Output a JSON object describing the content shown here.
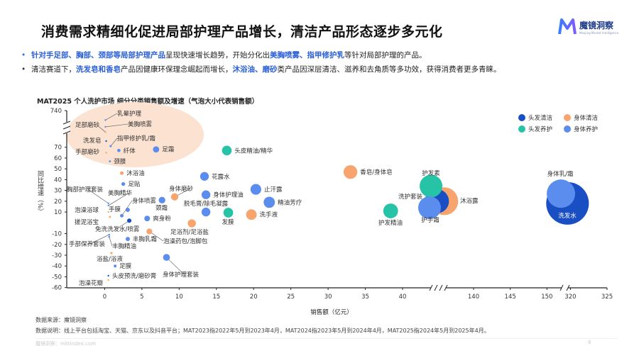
{
  "header": {
    "title": "消费需求精细化促进局部护理产品增长，清洁产品形态逐步多元化",
    "logo_name": "魔镜洞察",
    "logo_sub": "Moojing Market Intelligence"
  },
  "bullets": [
    [
      {
        "t": "针对手足部、胸部、颈部等局部护理产品",
        "h": true
      },
      {
        "t": "呈现快速增长趋势，开始分化出",
        "h": false
      },
      {
        "t": "美胸喷雾、指甲修护乳",
        "h": true
      },
      {
        "t": "等针对局部护理的产品。",
        "h": false
      }
    ],
    [
      {
        "t": "清洁赛道下，",
        "h": false
      },
      {
        "t": "洗发皂和香皂",
        "h": true
      },
      {
        "t": "产品因健康环保理念崛起而增长，",
        "h": false
      },
      {
        "t": "沐浴油、磨砂",
        "h": true
      },
      {
        "t": "类产品因深层清洁、滋养和去角质等多功效，获得消费者更多青睐。",
        "h": false
      }
    ]
  ],
  "chart_data": {
    "type": "scatter",
    "title": "MAT2025 个人洗护市场 细分分类销售额及增速（气泡大小代表销售额）",
    "xlabel": "销售额（亿元）",
    "ylabel": "同比增速（%）",
    "x_ticks": [
      0,
      5,
      10,
      15,
      20,
      25,
      30,
      35,
      40,
      140,
      145,
      150,
      320,
      325
    ],
    "y_ticks": [
      740,
      70,
      60,
      50,
      40,
      30,
      20,
      10,
      -10,
      -20,
      -30,
      -40,
      -50,
      -60
    ],
    "x_axis_breaks": [
      [
        40,
        134
      ],
      [
        152,
        318.5
      ]
    ],
    "y_axis_break": [
      72,
      740
    ],
    "legend_position": "top-right",
    "categories": [
      {
        "name": "头发清洁",
        "color": "#1a4fc4"
      },
      {
        "name": "身体清洁",
        "color": "#f7a46e"
      },
      {
        "name": "头发养护",
        "color": "#27c3a6"
      },
      {
        "name": "身体养护",
        "color": "#5b8def"
      }
    ],
    "points": [
      {
        "name": "乳晕护理",
        "x": 0.1,
        "y": 550,
        "cat": 3
      },
      {
        "name": "足部磨砂",
        "x": 0.1,
        "y": 310,
        "cat": 1
      },
      {
        "name": "美胸喷雾",
        "x": 0.1,
        "y": 414,
        "cat": 3
      },
      {
        "name": "洗发皂",
        "x": 0.2,
        "y": 129,
        "cat": 0
      },
      {
        "name": "指甲修护乳/霜",
        "x": 0.8,
        "y": 71,
        "cat": 3
      },
      {
        "name": "手部磨砂",
        "x": 0.2,
        "y": 65,
        "cat": 1
      },
      {
        "name": "纤体",
        "x": 1.9,
        "y": 67,
        "cat": 3
      },
      {
        "name": "足霜",
        "x": 6.9,
        "y": 68,
        "cat": 3
      },
      {
        "name": "颈膜",
        "x": 0.7,
        "y": 57,
        "cat": 3
      },
      {
        "name": "沐浴油",
        "x": 2.3,
        "y": 46,
        "cat": 1
      },
      {
        "name": "足贴",
        "x": 2.5,
        "y": 36,
        "cat": 3
      },
      {
        "name": "胸部护理套装",
        "x": 0.5,
        "y": 18,
        "cat": 3
      },
      {
        "name": "美胸精华",
        "x": 0.5,
        "y": 16,
        "cat": 3
      },
      {
        "name": "泡澡浴球",
        "x": 0.5,
        "y": 10,
        "cat": 1
      },
      {
        "name": "手膜",
        "x": 3.1,
        "y": 12,
        "cat": 3
      },
      {
        "name": "身体喷雾",
        "x": 2.3,
        "y": 6.6,
        "cat": 3
      },
      {
        "name": "颈霜",
        "x": 7.7,
        "y": 21,
        "cat": 3
      },
      {
        "name": "身体磨砂",
        "x": 9.4,
        "y": 24,
        "cat": 1
      },
      {
        "name": "爽身粉",
        "x": 5.7,
        "y": 4,
        "cat": 3
      },
      {
        "name": "搓泥浴宝",
        "x": 0.7,
        "y": 5.5,
        "cat": 1
      },
      {
        "name": "免洗洗发水/喷雾",
        "x": 3.3,
        "y": 2,
        "cat": 0
      },
      {
        "name": "足浴剂/足浴盐",
        "x": 11.7,
        "y": -0.5,
        "cat": 1
      },
      {
        "name": "泡澡药包/泡脚包",
        "x": 6,
        "y": -8,
        "cat": 1
      },
      {
        "name": "手部保养套装",
        "x": 0.6,
        "y": -11,
        "cat": 3
      },
      {
        "name": "丰胸乳霜",
        "x": 3.1,
        "y": -15,
        "cat": 3
      },
      {
        "name": "丰胸精油",
        "x": 0.6,
        "y": -13,
        "cat": 3
      },
      {
        "name": "浴盐/浴液",
        "x": 0.9,
        "y": -28,
        "cat": 1
      },
      {
        "name": "足膜",
        "x": 1.4,
        "y": -40,
        "cat": 3
      },
      {
        "name": "头皮预洗/磨砂膏",
        "x": 0.5,
        "y": -49,
        "cat": 0
      },
      {
        "name": "泡澡花瓣",
        "x": 0.5,
        "y": -53,
        "cat": 1
      },
      {
        "name": "身体护理套装",
        "x": 8.3,
        "y": -32,
        "cat": 3
      },
      {
        "name": "头皮精油/精华",
        "x": 16.4,
        "y": 67,
        "cat": 2
      },
      {
        "name": "花露水",
        "x": 13.4,
        "y": 43,
        "cat": 3
      },
      {
        "name": "身体护理油",
        "x": 13.6,
        "y": 26,
        "cat": 3
      },
      {
        "name": "脱毛膏/除毛凝露",
        "x": 13.6,
        "y": 10,
        "cat": 3
      },
      {
        "name": "发膜",
        "x": 16.6,
        "y": 9.4,
        "cat": 2
      },
      {
        "name": "止汗露",
        "x": 20.3,
        "y": 31,
        "cat": 3
      },
      {
        "name": "精油芳疗",
        "x": 22.1,
        "y": 19,
        "cat": 3
      },
      {
        "name": "洗手液",
        "x": 19.7,
        "y": 7.6,
        "cat": 1
      },
      {
        "name": "香皂/身体皂",
        "x": 33,
        "y": 47,
        "cat": 1
      },
      {
        "name": "护发精油",
        "x": 38.4,
        "y": 11,
        "cat": 2
      },
      {
        "name": "护发素",
        "x": 134.2,
        "y": 34,
        "cat": 2
      },
      {
        "name": "沐浴露",
        "x": 136,
        "y": 20,
        "cat": 1
      },
      {
        "name": "洗护套装",
        "x": 135,
        "y": 20,
        "cat": 0
      },
      {
        "name": "护手霜",
        "x": 134,
        "y": 14,
        "cat": 3
      },
      {
        "name": "洗发水",
        "x": 319.6,
        "y": 18,
        "cat": 0
      },
      {
        "name": "身体乳/霜",
        "x": 318.7,
        "y": 27,
        "cat": 3
      }
    ]
  },
  "notes": {
    "source": "数据来源：魔镜洞察",
    "desc": "数据说明：线上平台包括淘宝、天猫、京东以及抖音平台；MAT2023指2022年5月到2023年4月，MAT2024指2023年5月到2024年4月，MAT2025指2024年5月到2025年4月。"
  },
  "footer": {
    "site": "魔镜洞察：mktindex.com",
    "page": "8"
  }
}
